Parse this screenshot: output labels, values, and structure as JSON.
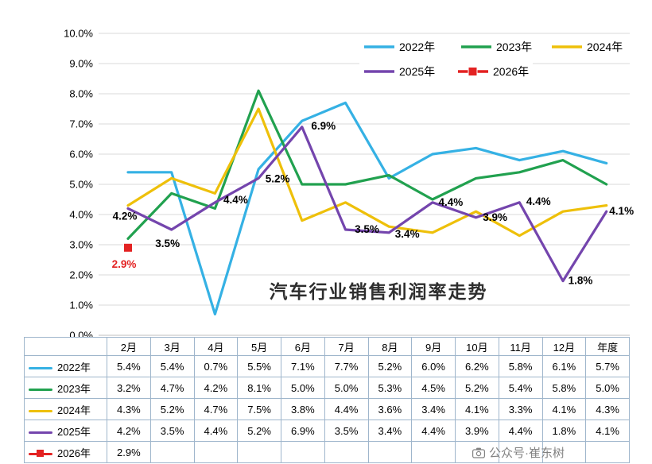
{
  "title": "汽车行业销售利润率走势",
  "watermark": {
    "text": "公众号·崔东树"
  },
  "chart_data": {
    "type": "line",
    "categories": [
      "2月",
      "3月",
      "4月",
      "5月",
      "6月",
      "7月",
      "8月",
      "9月",
      "10月",
      "11月",
      "12月",
      "年度"
    ],
    "y_ticks": [
      "0.0%",
      "1.0%",
      "2.0%",
      "3.0%",
      "4.0%",
      "5.0%",
      "6.0%",
      "7.0%",
      "8.0%",
      "9.0%",
      "10.0%"
    ],
    "ylim": [
      0,
      10
    ],
    "grid": true,
    "legend_position": "top-right",
    "series": [
      {
        "name": "2022年",
        "color": "#35b1e4",
        "values": [
          5.4,
          5.4,
          0.7,
          5.5,
          7.1,
          7.7,
          5.2,
          6.0,
          6.2,
          5.8,
          6.1,
          5.7
        ]
      },
      {
        "name": "2023年",
        "color": "#21a14f",
        "values": [
          3.2,
          4.7,
          4.2,
          8.1,
          5.0,
          5.0,
          5.3,
          4.5,
          5.2,
          5.4,
          5.8,
          5.0
        ]
      },
      {
        "name": "2024年",
        "color": "#eec00a",
        "values": [
          4.3,
          5.2,
          4.7,
          7.5,
          3.8,
          4.4,
          3.6,
          3.4,
          4.1,
          3.3,
          4.1,
          4.3
        ]
      },
      {
        "name": "2025年",
        "color": "#7445ad",
        "values": [
          4.2,
          3.5,
          4.4,
          5.2,
          6.9,
          3.5,
          3.4,
          4.4,
          3.9,
          4.4,
          1.8,
          4.1
        ],
        "show_labels": true,
        "label_color": "#000000"
      },
      {
        "name": "2026年",
        "color": "#e32222",
        "values": [
          2.9
        ],
        "marker": "square",
        "show_labels": true,
        "label_color": "#e32222"
      }
    ]
  },
  "table": {
    "header": [
      "",
      "2月",
      "3月",
      "4月",
      "5月",
      "6月",
      "7月",
      "8月",
      "9月",
      "10月",
      "11月",
      "12月",
      "年度"
    ],
    "rows": [
      {
        "name": "2022年",
        "color": "#35b1e4",
        "cells": [
          "5.4%",
          "5.4%",
          "0.7%",
          "5.5%",
          "7.1%",
          "7.7%",
          "5.2%",
          "6.0%",
          "6.2%",
          "5.8%",
          "6.1%",
          "5.7%"
        ]
      },
      {
        "name": "2023年",
        "color": "#21a14f",
        "cells": [
          "3.2%",
          "4.7%",
          "4.2%",
          "8.1%",
          "5.0%",
          "5.0%",
          "5.3%",
          "4.5%",
          "5.2%",
          "5.4%",
          "5.8%",
          "5.0%"
        ]
      },
      {
        "name": "2024年",
        "color": "#eec00a",
        "cells": [
          "4.3%",
          "5.2%",
          "4.7%",
          "7.5%",
          "3.8%",
          "4.4%",
          "3.6%",
          "3.4%",
          "4.1%",
          "3.3%",
          "4.1%",
          "4.3%"
        ]
      },
      {
        "name": "2025年",
        "color": "#7445ad",
        "cells": [
          "4.2%",
          "3.5%",
          "4.4%",
          "5.2%",
          "6.9%",
          "3.5%",
          "3.4%",
          "4.4%",
          "3.9%",
          "4.4%",
          "1.8%",
          "4.1%"
        ]
      },
      {
        "name": "2026年",
        "color": "#e32222",
        "marker": "square",
        "cells": [
          "2.9%",
          "",
          "",
          "",
          "",
          "",
          "",
          "",
          "",
          "",
          "",
          ""
        ]
      }
    ]
  }
}
